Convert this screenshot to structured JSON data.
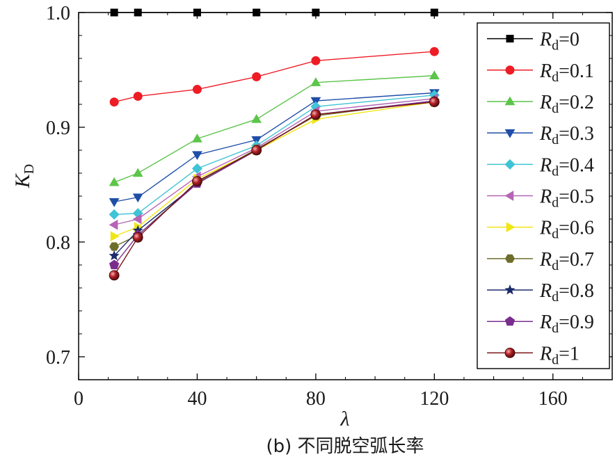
{
  "chart_data": {
    "type": "line",
    "xlabel": "λ",
    "ylabel_main": "K",
    "ylabel_sub": "D",
    "caption": "(b) 不同脱空弧长率",
    "xlim": [
      0,
      180
    ],
    "ylim": [
      0.68,
      1.0
    ],
    "xticks": [
      0,
      40,
      80,
      120,
      160
    ],
    "xtick_labels": [
      "0",
      "40",
      "80",
      "120",
      "160"
    ],
    "yticks": [
      0.7,
      0.8,
      0.9,
      1.0
    ],
    "ytick_labels": [
      "0.7",
      "0.8",
      "0.9",
      "1.0"
    ],
    "x": [
      12,
      20,
      40,
      60,
      80,
      120
    ],
    "legend_position": "right",
    "series": [
      {
        "name": "0",
        "legend_main": "R",
        "legend_sub": "d",
        "legend_value": "=0",
        "color": "#000000",
        "marker": "square",
        "values": [
          1.0,
          1.0,
          1.0,
          1.0,
          1.0,
          1.0
        ]
      },
      {
        "name": "0.1",
        "legend_main": "R",
        "legend_sub": "d",
        "legend_value": "=0.1",
        "color": "#ee1c25",
        "marker": "circle",
        "values": [
          0.922,
          0.927,
          0.933,
          0.944,
          0.958,
          0.966
        ]
      },
      {
        "name": "0.2",
        "legend_main": "R",
        "legend_sub": "d",
        "legend_value": "=0.2",
        "color": "#5cc54a",
        "marker": "triangle-up",
        "values": [
          0.852,
          0.86,
          0.89,
          0.907,
          0.939,
          0.945
        ]
      },
      {
        "name": "0.3",
        "legend_main": "R",
        "legend_sub": "d",
        "legend_value": "=0.3",
        "color": "#1f4ea8",
        "marker": "triangle-down",
        "values": [
          0.835,
          0.839,
          0.876,
          0.889,
          0.923,
          0.93
        ]
      },
      {
        "name": "0.4",
        "legend_main": "R",
        "legend_sub": "d",
        "legend_value": "=0.4",
        "color": "#3fc3d6",
        "marker": "diamond",
        "values": [
          0.824,
          0.825,
          0.864,
          0.884,
          0.918,
          0.928
        ]
      },
      {
        "name": "0.5",
        "legend_main": "R",
        "legend_sub": "d",
        "legend_value": "=0.5",
        "color": "#b565b5",
        "marker": "triangle-left",
        "values": [
          0.815,
          0.82,
          0.857,
          0.882,
          0.914,
          0.925
        ]
      },
      {
        "name": "0.6",
        "legend_main": "R",
        "legend_sub": "d",
        "legend_value": "=0.6",
        "color": "#f0e614",
        "marker": "triangle-right",
        "values": [
          0.805,
          0.813,
          0.855,
          0.88,
          0.907,
          0.922
        ]
      },
      {
        "name": "0.7",
        "legend_main": "R",
        "legend_sub": "d",
        "legend_value": "=0.7",
        "color": "#6e6e2c",
        "marker": "hexagon",
        "values": [
          0.796,
          0.806,
          0.852,
          0.881,
          0.91,
          0.923
        ]
      },
      {
        "name": "0.8",
        "legend_main": "R",
        "legend_sub": "d",
        "legend_value": "=0.8",
        "color": "#1b2a6b",
        "marker": "star",
        "values": [
          0.788,
          0.81,
          0.851,
          0.88,
          0.911,
          0.923
        ]
      },
      {
        "name": "0.9",
        "legend_main": "R",
        "legend_sub": "d",
        "legend_value": "=0.9",
        "color": "#7b2d8e",
        "marker": "pentagon",
        "values": [
          0.78,
          0.806,
          0.851,
          0.88,
          0.911,
          0.923
        ]
      },
      {
        "name": "1",
        "legend_main": "R",
        "legend_sub": "d",
        "legend_value": "=1",
        "color": "#7a1416",
        "marker": "sphere",
        "values": [
          0.771,
          0.804,
          0.853,
          0.88,
          0.911,
          0.922
        ]
      }
    ]
  }
}
